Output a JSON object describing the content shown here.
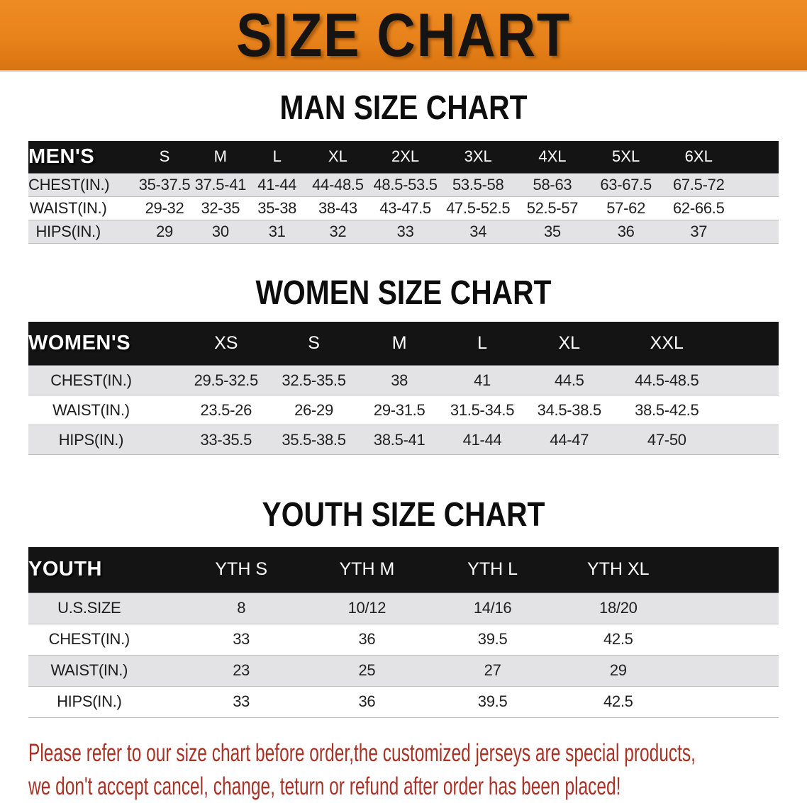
{
  "banner": {
    "title": "SIZE CHART"
  },
  "colors": {
    "banner_bg": "#E8821B",
    "header_bar_bg": "#141414",
    "row_stripe": "#E3E3E5",
    "disclaimer_text": "#A93226"
  },
  "sections": {
    "men": {
      "heading": "MAN SIZE CHART",
      "columns": [
        "MEN'S",
        "S",
        "M",
        "L",
        "XL",
        "2XL",
        "3XL",
        "4XL",
        "5XL",
        "6XL"
      ],
      "rows": [
        {
          "label": "CHEST(IN.)",
          "values": [
            "35-37.5",
            "37.5-41",
            "41-44",
            "44-48.5",
            "48.5-53.5",
            "53.5-58",
            "58-63",
            "63-67.5",
            "67.5-72"
          ]
        },
        {
          "label": "WAIST(IN.)",
          "values": [
            "29-32",
            "32-35",
            "35-38",
            "38-43",
            "43-47.5",
            "47.5-52.5",
            "52.5-57",
            "57-62",
            "62-66.5"
          ]
        },
        {
          "label": "HIPS(IN.)",
          "values": [
            "29",
            "30",
            "31",
            "32",
            "33",
            "34",
            "35",
            "36",
            "37"
          ]
        }
      ]
    },
    "women": {
      "heading": "WOMEN SIZE CHART",
      "columns": [
        "WOMEN'S",
        "XS",
        "S",
        "M",
        "L",
        "XL",
        "XXL"
      ],
      "rows": [
        {
          "label": "CHEST(IN.)",
          "values": [
            "29.5-32.5",
            "32.5-35.5",
            "38",
            "41",
            "44.5",
            "44.5-48.5"
          ]
        },
        {
          "label": "WAIST(IN.)",
          "values": [
            "23.5-26",
            "26-29",
            "29-31.5",
            "31.5-34.5",
            "34.5-38.5",
            "38.5-42.5"
          ]
        },
        {
          "label": "HIPS(IN.)",
          "values": [
            "33-35.5",
            "35.5-38.5",
            "38.5-41",
            "41-44",
            "44-47",
            "47-50"
          ]
        }
      ]
    },
    "youth": {
      "heading": "YOUTH SIZE CHART",
      "columns": [
        "YOUTH",
        "YTH S",
        "YTH M",
        "YTH L",
        "YTH XL"
      ],
      "rows": [
        {
          "label": "U.S.SIZE",
          "values": [
            "8",
            "10/12",
            "14/16",
            "18/20"
          ]
        },
        {
          "label": "CHEST(IN.)",
          "values": [
            "33",
            "36",
            "39.5",
            "42.5"
          ]
        },
        {
          "label": "WAIST(IN.)",
          "values": [
            "23",
            "25",
            "27",
            "29"
          ]
        },
        {
          "label": "HIPS(IN.)",
          "values": [
            "33",
            "36",
            "39.5",
            "42.5"
          ]
        }
      ]
    }
  },
  "disclaimer": {
    "lines": [
      "Please refer to our size chart before order,the customized jerseys are special products,",
      "we don't accept cancel, change, teturn or refund after order has been placed!"
    ]
  }
}
